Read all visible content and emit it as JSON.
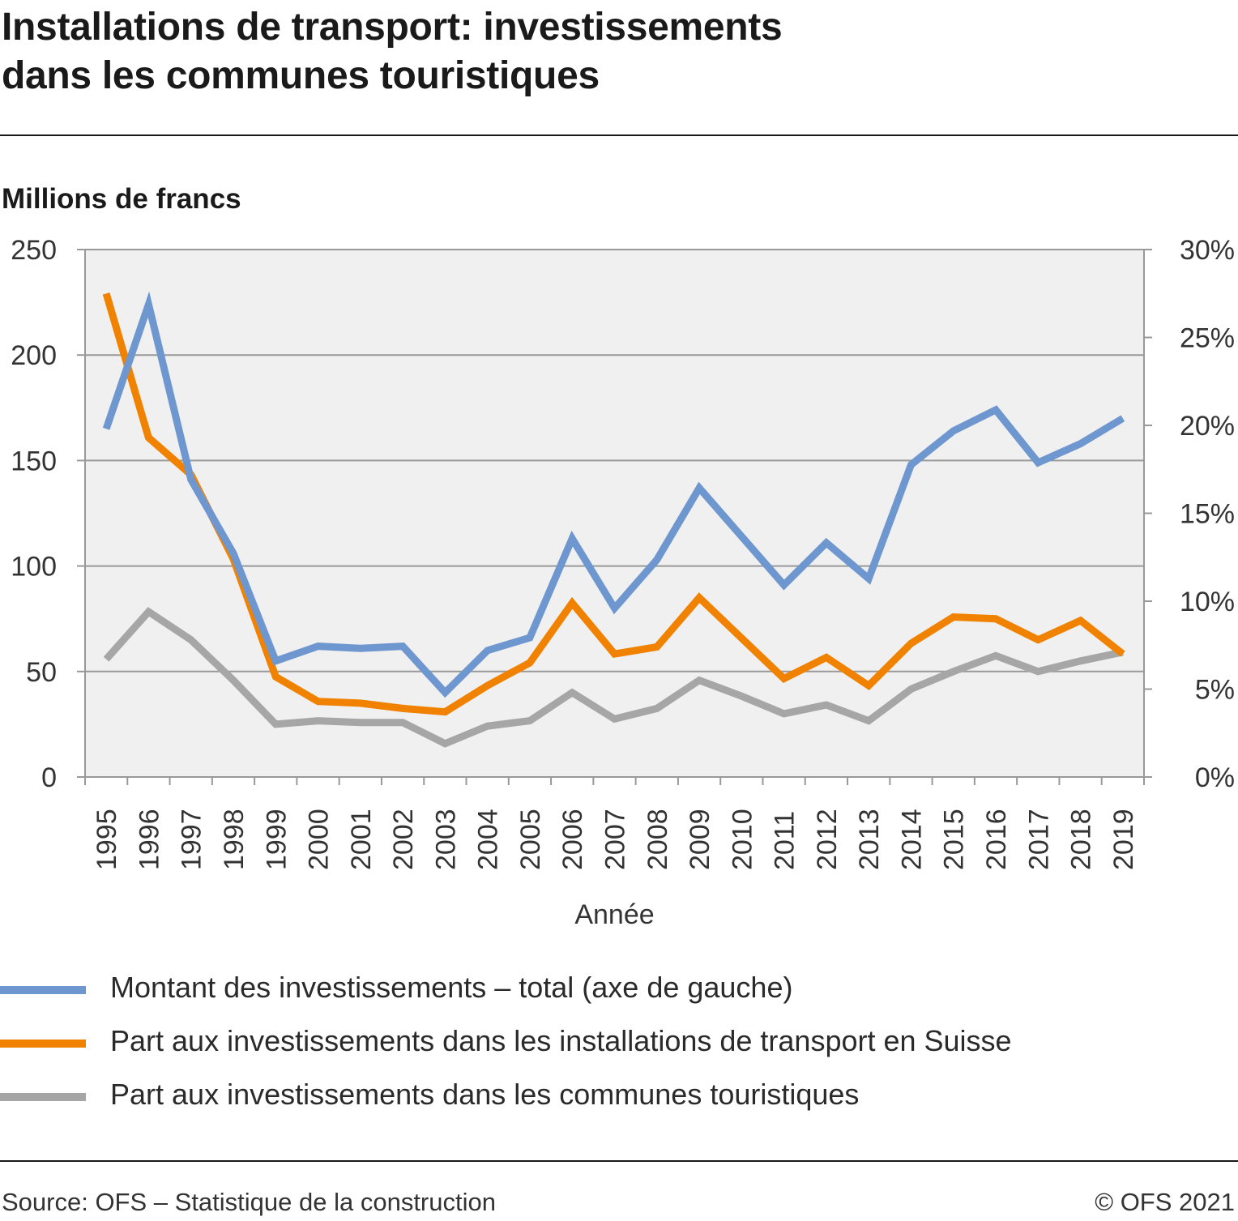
{
  "header": {
    "title_line1": "Installations de transport: investissements",
    "title_line2": "dans les communes touristiques"
  },
  "unit_label": "Millions de francs",
  "footer": {
    "source": "Source: OFS – Statistique de la construction",
    "copyright": "© OFS 2021"
  },
  "chart_data": {
    "type": "line",
    "title": "Installations de transport: investissements dans les communes touristiques",
    "ylabel": "Millions de francs",
    "xlabel": "Année",
    "categories": [
      "1995",
      "1996",
      "1997",
      "1998",
      "1999",
      "2000",
      "2001",
      "2002",
      "2003",
      "2004",
      "2005",
      "2006",
      "2007",
      "2008",
      "2009",
      "2010",
      "2011",
      "2012",
      "2013",
      "2014",
      "2015",
      "2016",
      "2017",
      "2018",
      "2019"
    ],
    "y_left": {
      "min": 0,
      "max": 250,
      "ticks": [
        0,
        50,
        100,
        150,
        200,
        250
      ],
      "tick_labels": [
        "0",
        "50",
        "100",
        "150",
        "200",
        "250"
      ]
    },
    "y_right": {
      "min": 0,
      "max": 30,
      "ticks": [
        0,
        5,
        10,
        15,
        20,
        25,
        30
      ],
      "tick_labels": [
        "0%",
        "5%",
        "10%",
        "15%",
        "20%",
        "25%",
        "30%"
      ]
    },
    "grid": true,
    "legend_position": "bottom",
    "series": [
      {
        "name": "Montant des investissements – total (axe de gauche)",
        "axis": "left",
        "color": "#6e97d0",
        "values": [
          165,
          224,
          141,
          106,
          55,
          62,
          61,
          62,
          40,
          60,
          66,
          113,
          80,
          103,
          137,
          114,
          91,
          111,
          94,
          148,
          164,
          174,
          149,
          158,
          170
        ]
      },
      {
        "name": "Part aux investissements dans les installations de transport en Suisse",
        "axis": "right",
        "color": "#f08200",
        "values": [
          27.5,
          19.3,
          17.2,
          12.4,
          5.7,
          4.3,
          4.2,
          3.9,
          3.7,
          5.2,
          6.5,
          9.9,
          7.0,
          7.4,
          10.2,
          7.9,
          5.6,
          6.8,
          5.2,
          7.6,
          9.1,
          9.0,
          7.8,
          8.9,
          7.0
        ]
      },
      {
        "name": "Part aux investissements dans les communes touristiques",
        "axis": "right",
        "color": "#a6a6a6",
        "values": [
          6.7,
          9.4,
          7.8,
          5.5,
          3.0,
          3.2,
          3.1,
          3.1,
          1.9,
          2.9,
          3.2,
          4.8,
          3.3,
          3.9,
          5.5,
          4.6,
          3.6,
          4.1,
          3.2,
          5.0,
          6.0,
          6.9,
          6.0,
          6.6,
          7.1
        ]
      }
    ]
  }
}
